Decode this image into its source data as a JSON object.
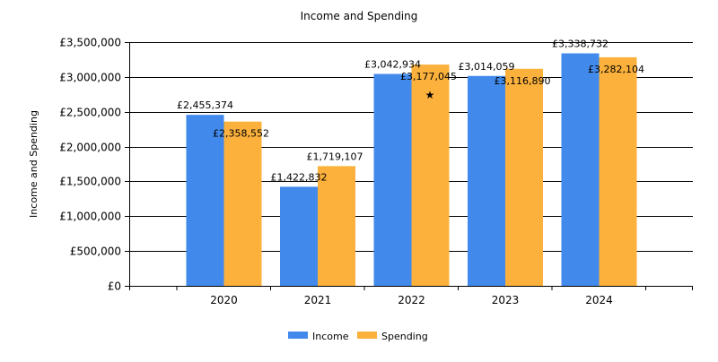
{
  "chart_data": {
    "type": "bar",
    "title": "Income and Spending",
    "xlabel": "",
    "ylabel": "Income and Spending",
    "categories": [
      "2020",
      "2021",
      "2022",
      "2023",
      "2024"
    ],
    "series": [
      {
        "name": "Income",
        "color": "#4189ea",
        "values": [
          2455374,
          1422832,
          3042934,
          3014059,
          3338732
        ],
        "labels": [
          "£2,455,374",
          "£1,422,832",
          "£3,042,934",
          "£3,014,059",
          "£3,338,732"
        ]
      },
      {
        "name": "Spending",
        "color": "#fbb13c",
        "values": [
          2358552,
          1719107,
          3177045,
          3116890,
          3282104
        ],
        "labels": [
          "£2,358,552",
          "£1,719,107",
          "£3,177,045",
          "£3,116,890",
          "£3,282,104"
        ]
      }
    ],
    "ylim": [
      0,
      3500000
    ],
    "yticks": [
      0,
      500000,
      1000000,
      1500000,
      2000000,
      2500000,
      3000000,
      3500000
    ],
    "ytick_labels": [
      "£0",
      "£500,000",
      "£1,000,000",
      "£1,500,000",
      "£2,000,000",
      "£2,500,000",
      "£3,000,000",
      "£3,500,000"
    ],
    "grid": true,
    "legend_position": "bottom-center"
  }
}
